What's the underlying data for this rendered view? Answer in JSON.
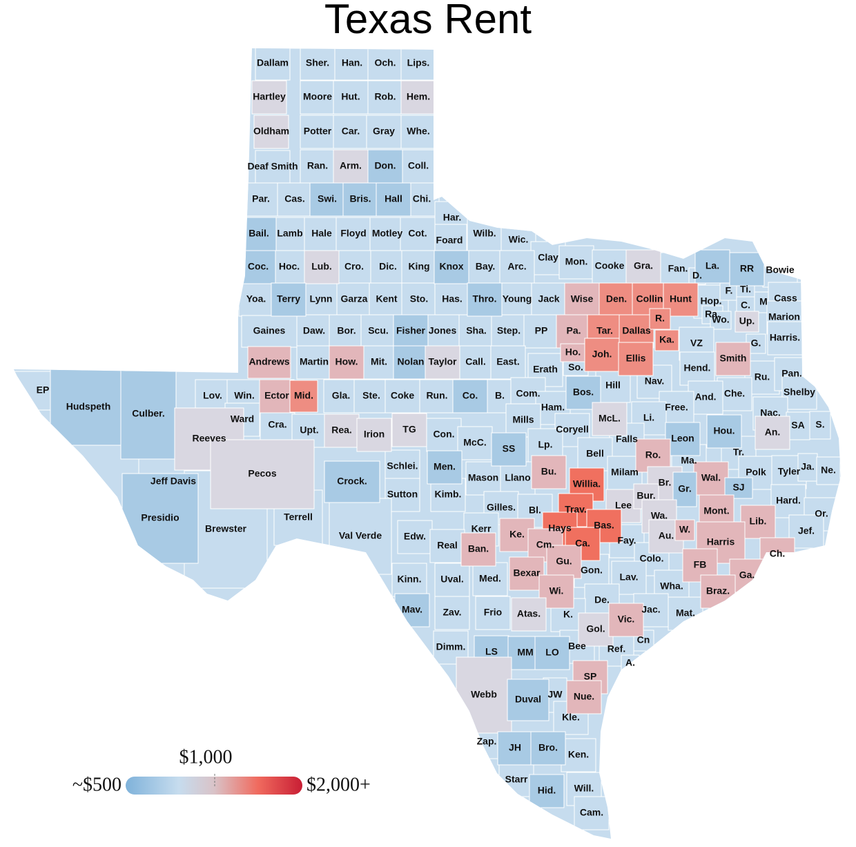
{
  "title": "Texas Rent",
  "legend": {
    "min_label": "~$500",
    "mid_label": "$1,000",
    "max_label": "$2,000+"
  },
  "counties": [
    {
      "label": "Dallam",
      "color": "#c6dcee"
    },
    {
      "label": "Sher.",
      "color": "#c6dcee"
    },
    {
      "label": "Han.",
      "color": "#c6dcee"
    },
    {
      "label": "Och.",
      "color": "#c6dcee"
    },
    {
      "label": "Lips.",
      "color": "#c6dcee"
    },
    {
      "label": "Hartley",
      "color": "#d9d7e1"
    },
    {
      "label": "Moore",
      "color": "#c6dcee"
    },
    {
      "label": "Hut.",
      "color": "#c6dcee"
    },
    {
      "label": "Rob.",
      "color": "#c6dcee"
    },
    {
      "label": "Hem.",
      "color": "#d9d7e1"
    },
    {
      "label": "Oldham",
      "color": "#d9d7e1"
    },
    {
      "label": "Potter",
      "color": "#c6dcee"
    },
    {
      "label": "Car.",
      "color": "#c6dcee"
    },
    {
      "label": "Gray",
      "color": "#c6dcee"
    },
    {
      "label": "Whe.",
      "color": "#c6dcee"
    },
    {
      "label": "Deaf Smith",
      "color": "#c6dcee"
    },
    {
      "label": "Ran.",
      "color": "#c6dcee"
    },
    {
      "label": "Arm.",
      "color": "#d9d7e1"
    },
    {
      "label": "Don.",
      "color": "#a8cae4"
    },
    {
      "label": "Coll.",
      "color": "#c6dcee"
    },
    {
      "label": "Par.",
      "color": "#c6dcee"
    },
    {
      "label": "Cas.",
      "color": "#c6dcee"
    },
    {
      "label": "Swi.",
      "color": "#a8cae4"
    },
    {
      "label": "Bris.",
      "color": "#a8cae4"
    },
    {
      "label": "Hall",
      "color": "#a8cae4"
    },
    {
      "label": "Chi.",
      "color": "#c6dcee"
    },
    {
      "label": "Har.",
      "color": "#c6dcee"
    },
    {
      "label": "Foard",
      "color": "#c6dcee"
    },
    {
      "label": "Wilb.",
      "color": "#c6dcee"
    },
    {
      "label": "Wic.",
      "color": "#c6dcee"
    },
    {
      "label": "Clay",
      "color": "#c6dcee"
    },
    {
      "label": "Mon.",
      "color": "#c6dcee"
    },
    {
      "label": "Cooke",
      "color": "#c6dcee"
    },
    {
      "label": "Gra.",
      "color": "#d9d7e1"
    },
    {
      "label": "Fan.",
      "color": "#c6dcee"
    },
    {
      "label": "La.",
      "color": "#a8cae4"
    },
    {
      "label": "RR",
      "color": "#a8cae4"
    },
    {
      "label": "Bowie",
      "color": "#c6dcee"
    },
    {
      "label": "D.",
      "color": "#c6dcee"
    },
    {
      "label": "Bail.",
      "color": "#a8cae4"
    },
    {
      "label": "Lamb",
      "color": "#c6dcee"
    },
    {
      "label": "Hale",
      "color": "#c6dcee"
    },
    {
      "label": "Floyd",
      "color": "#c6dcee"
    },
    {
      "label": "Motley",
      "color": "#c6dcee"
    },
    {
      "label": "Cot.",
      "color": "#c6dcee"
    },
    {
      "label": "Coc.",
      "color": "#a8cae4"
    },
    {
      "label": "Hoc.",
      "color": "#c6dcee"
    },
    {
      "label": "Lub.",
      "color": "#d9d7e1"
    },
    {
      "label": "Cro.",
      "color": "#c6dcee"
    },
    {
      "label": "Dic.",
      "color": "#c6dcee"
    },
    {
      "label": "King",
      "color": "#c6dcee"
    },
    {
      "label": "Knox",
      "color": "#a8cae4"
    },
    {
      "label": "Bay.",
      "color": "#c6dcee"
    },
    {
      "label": "Arc.",
      "color": "#c6dcee"
    },
    {
      "label": "Yoa.",
      "color": "#c6dcee"
    },
    {
      "label": "Terry",
      "color": "#a8cae4"
    },
    {
      "label": "Lynn",
      "color": "#c6dcee"
    },
    {
      "label": "Garza",
      "color": "#c6dcee"
    },
    {
      "label": "Kent",
      "color": "#c6dcee"
    },
    {
      "label": "Sto.",
      "color": "#c6dcee"
    },
    {
      "label": "Has.",
      "color": "#c6dcee"
    },
    {
      "label": "Thro.",
      "color": "#a8cae4"
    },
    {
      "label": "Young",
      "color": "#c6dcee"
    },
    {
      "label": "Jack",
      "color": "#c6dcee"
    },
    {
      "label": "Wise",
      "color": "#e2b6ba"
    },
    {
      "label": "Den.",
      "color": "#ee8d82"
    },
    {
      "label": "Collin",
      "color": "#ee8d82"
    },
    {
      "label": "Hunt",
      "color": "#ee8d82"
    },
    {
      "label": "Hop.",
      "color": "#c6dcee"
    },
    {
      "label": "F.",
      "color": "#c6dcee"
    },
    {
      "label": "Ti.",
      "color": "#c6dcee"
    },
    {
      "label": "C.",
      "color": "#c6dcee"
    },
    {
      "label": "M",
      "color": "#c6dcee"
    },
    {
      "label": "Cass",
      "color": "#c6dcee"
    },
    {
      "label": "Gaines",
      "color": "#c6dcee"
    },
    {
      "label": "Daw.",
      "color": "#c6dcee"
    },
    {
      "label": "Bor.",
      "color": "#c6dcee"
    },
    {
      "label": "Scu.",
      "color": "#c6dcee"
    },
    {
      "label": "Fisher",
      "color": "#a8cae4"
    },
    {
      "label": "Jones",
      "color": "#c6dcee"
    },
    {
      "label": "Sha.",
      "color": "#c6dcee"
    },
    {
      "label": "Step.",
      "color": "#c6dcee"
    },
    {
      "label": "PP",
      "color": "#c6dcee"
    },
    {
      "label": "Pa.",
      "color": "#e2b6ba"
    },
    {
      "label": "Tar.",
      "color": "#ee8d82"
    },
    {
      "label": "Dallas",
      "color": "#ee8d82"
    },
    {
      "label": "R.",
      "color": "#ee8d82"
    },
    {
      "label": "Ra.",
      "color": "#c6dcee"
    },
    {
      "label": "Wo.",
      "color": "#c6dcee"
    },
    {
      "label": "Up.",
      "color": "#d9d7e1"
    },
    {
      "label": "Marion",
      "color": "#c6dcee"
    },
    {
      "label": "Ka.",
      "color": "#ee8d82"
    },
    {
      "label": "G.",
      "color": "#c6dcee"
    },
    {
      "label": "Harris.",
      "color": "#c6dcee"
    },
    {
      "label": "Andrews",
      "color": "#e2b6ba"
    },
    {
      "label": "Martin",
      "color": "#c6dcee"
    },
    {
      "label": "How.",
      "color": "#e2b6ba"
    },
    {
      "label": "Mit.",
      "color": "#c6dcee"
    },
    {
      "label": "Nolan",
      "color": "#a8cae4"
    },
    {
      "label": "Taylor",
      "color": "#d9d7e1"
    },
    {
      "label": "Call.",
      "color": "#c6dcee"
    },
    {
      "label": "East.",
      "color": "#c6dcee"
    },
    {
      "label": "Erath",
      "color": "#c6dcee"
    },
    {
      "label": "Ho.",
      "color": "#e2b6ba"
    },
    {
      "label": "So.",
      "color": "#c6dcee"
    },
    {
      "label": "Joh.",
      "color": "#ee8d82"
    },
    {
      "label": "Ellis",
      "color": "#ee8d82"
    },
    {
      "label": "VZ",
      "color": "#c6dcee"
    },
    {
      "label": "Smith",
      "color": "#e2b6ba"
    },
    {
      "label": "Hend.",
      "color": "#c6dcee"
    },
    {
      "label": "Ru.",
      "color": "#c6dcee"
    },
    {
      "label": "Pan.",
      "color": "#c6dcee"
    },
    {
      "label": "EP",
      "color": "#c6dcee"
    },
    {
      "label": "Hudspeth",
      "color": "#a8cae4"
    },
    {
      "label": "Culber.",
      "color": "#a8cae4"
    },
    {
      "label": "Lov.",
      "color": "#c6dcee"
    },
    {
      "label": "Win.",
      "color": "#c6dcee"
    },
    {
      "label": "Ector",
      "color": "#e2b6ba"
    },
    {
      "label": "Mid.",
      "color": "#ee8d82"
    },
    {
      "label": "Gla.",
      "color": "#c6dcee"
    },
    {
      "label": "Ste.",
      "color": "#c6dcee"
    },
    {
      "label": "Coke",
      "color": "#c6dcee"
    },
    {
      "label": "Run.",
      "color": "#c6dcee"
    },
    {
      "label": "Co.",
      "color": "#a8cae4"
    },
    {
      "label": "B.",
      "color": "#c6dcee"
    },
    {
      "label": "Com.",
      "color": "#c6dcee"
    },
    {
      "label": "Bos.",
      "color": "#a8cae4"
    },
    {
      "label": "Hill",
      "color": "#c6dcee"
    },
    {
      "label": "Nav.",
      "color": "#c6dcee"
    },
    {
      "label": "Che.",
      "color": "#c6dcee"
    },
    {
      "label": "Shelby",
      "color": "#c6dcee"
    },
    {
      "label": "And.",
      "color": "#c6dcee"
    },
    {
      "label": "Free.",
      "color": "#c6dcee"
    },
    {
      "label": "Ham.",
      "color": "#c6dcee"
    },
    {
      "label": "Ward",
      "color": "#c6dcee"
    },
    {
      "label": "Cra.",
      "color": "#c6dcee"
    },
    {
      "label": "Reeves",
      "color": "#d9d7e1"
    },
    {
      "label": "Upt.",
      "color": "#c6dcee"
    },
    {
      "label": "Rea.",
      "color": "#d9d7e1"
    },
    {
      "label": "Irion",
      "color": "#d9d7e1"
    },
    {
      "label": "TG",
      "color": "#d9d7e1"
    },
    {
      "label": "Con.",
      "color": "#c6dcee"
    },
    {
      "label": "Mills",
      "color": "#c6dcee"
    },
    {
      "label": "Coryell",
      "color": "#c6dcee"
    },
    {
      "label": "McL.",
      "color": "#d9d7e1"
    },
    {
      "label": "Li.",
      "color": "#c6dcee"
    },
    {
      "label": "Nac.",
      "color": "#c6dcee"
    },
    {
      "label": "An.",
      "color": "#d9d7e1"
    },
    {
      "label": "SA",
      "color": "#c6dcee"
    },
    {
      "label": "S.",
      "color": "#c6dcee"
    },
    {
      "label": "Leon",
      "color": "#a8cae4"
    },
    {
      "label": "Hou.",
      "color": "#a8cae4"
    },
    {
      "label": "Falls",
      "color": "#c6dcee"
    },
    {
      "label": "Pecos",
      "color": "#d9d7e1"
    },
    {
      "label": "Jeff Davis",
      "color": "#c6dcee"
    },
    {
      "label": "McC.",
      "color": "#c6dcee"
    },
    {
      "label": "SS",
      "color": "#a8cae4"
    },
    {
      "label": "Lp.",
      "color": "#c6dcee"
    },
    {
      "label": "Bell",
      "color": "#c6dcee"
    },
    {
      "label": "Ro.",
      "color": "#e2b6ba"
    },
    {
      "label": "Ma.",
      "color": "#c6dcee"
    },
    {
      "label": "Tr.",
      "color": "#c6dcee"
    },
    {
      "label": "Schlei.",
      "color": "#c6dcee"
    },
    {
      "label": "Men.",
      "color": "#a8cae4"
    },
    {
      "label": "Mason",
      "color": "#c6dcee"
    },
    {
      "label": "Llano",
      "color": "#c6dcee"
    },
    {
      "label": "Bu.",
      "color": "#e2b6ba"
    },
    {
      "label": "Willia.",
      "color": "#f0705f"
    },
    {
      "label": "Milam",
      "color": "#c6dcee"
    },
    {
      "label": "Br.",
      "color": "#d9d7e1"
    },
    {
      "label": "Wal.",
      "color": "#e2b6ba"
    },
    {
      "label": "Polk",
      "color": "#c6dcee"
    },
    {
      "label": "Tyler",
      "color": "#c6dcee"
    },
    {
      "label": "Ja.",
      "color": "#c6dcee"
    },
    {
      "label": "Ne.",
      "color": "#c6dcee"
    },
    {
      "label": "Crock.",
      "color": "#a8cae4"
    },
    {
      "label": "Gr.",
      "color": "#a8cae4"
    },
    {
      "label": "SJ",
      "color": "#a8cae4"
    },
    {
      "label": "Presidio",
      "color": "#a8cae4"
    },
    {
      "label": "Brewster",
      "color": "#c6dcee"
    },
    {
      "label": "Terrell",
      "color": "#c6dcee"
    },
    {
      "label": "Sutton",
      "color": "#c6dcee"
    },
    {
      "label": "Kimb.",
      "color": "#c6dcee"
    },
    {
      "label": "Gilles.",
      "color": "#c6dcee"
    },
    {
      "label": "Bl.",
      "color": "#c6dcee"
    },
    {
      "label": "Trav.",
      "color": "#f0705f"
    },
    {
      "label": "Lee",
      "color": "#d9d7e1"
    },
    {
      "label": "Bur.",
      "color": "#d9d7e1"
    },
    {
      "label": "Hard.",
      "color": "#c6dcee"
    },
    {
      "label": "Mont.",
      "color": "#e2b6ba"
    },
    {
      "label": "Wa.",
      "color": "#d9d7e1"
    },
    {
      "label": "Lib.",
      "color": "#e2b6ba"
    },
    {
      "label": "Or.",
      "color": "#c6dcee"
    },
    {
      "label": "Val Verde",
      "color": "#c6dcee"
    },
    {
      "label": "Edw.",
      "color": "#c6dcee"
    },
    {
      "label": "Kerr",
      "color": "#c6dcee"
    },
    {
      "label": "Ke.",
      "color": "#e2b6ba"
    },
    {
      "label": "Hays",
      "color": "#f0705f"
    },
    {
      "label": "Bas.",
      "color": "#f0705f"
    },
    {
      "label": "Au.",
      "color": "#d9d7e1"
    },
    {
      "label": "W.",
      "color": "#e2b6ba"
    },
    {
      "label": "Harris",
      "color": "#e2b6ba"
    },
    {
      "label": "Jef.",
      "color": "#c6dcee"
    },
    {
      "label": "Real",
      "color": "#c6dcee"
    },
    {
      "label": "Ban.",
      "color": "#e2b6ba"
    },
    {
      "label": "Cm.",
      "color": "#e2b6ba"
    },
    {
      "label": "Ca.",
      "color": "#f0705f"
    },
    {
      "label": "Fay.",
      "color": "#c6dcee"
    },
    {
      "label": "Ch.",
      "color": "#e2b6ba"
    },
    {
      "label": "Gu.",
      "color": "#e2b6ba"
    },
    {
      "label": "Colo.",
      "color": "#c6dcee"
    },
    {
      "label": "FB",
      "color": "#e2b6ba"
    },
    {
      "label": "Kinn.",
      "color": "#c6dcee"
    },
    {
      "label": "Uval.",
      "color": "#c6dcee"
    },
    {
      "label": "Med.",
      "color": "#c6dcee"
    },
    {
      "label": "Bexar",
      "color": "#e2b6ba"
    },
    {
      "label": "Gon.",
      "color": "#c6dcee"
    },
    {
      "label": "Lav.",
      "color": "#c6dcee"
    },
    {
      "label": "Ga.",
      "color": "#e2b6ba"
    },
    {
      "label": "Wha.",
      "color": "#c6dcee"
    },
    {
      "label": "Braz.",
      "color": "#e2b6ba"
    },
    {
      "label": "Mav.",
      "color": "#a8cae4"
    },
    {
      "label": "Zav.",
      "color": "#c6dcee"
    },
    {
      "label": "Frio",
      "color": "#c6dcee"
    },
    {
      "label": "Wi.",
      "color": "#e2b6ba"
    },
    {
      "label": "Atas.",
      "color": "#d9d7e1"
    },
    {
      "label": "De.",
      "color": "#c6dcee"
    },
    {
      "label": "Jac.",
      "color": "#c6dcee"
    },
    {
      "label": "Mat.",
      "color": "#c6dcee"
    },
    {
      "label": "K.",
      "color": "#c6dcee"
    },
    {
      "label": "Gol.",
      "color": "#d9d7e1"
    },
    {
      "label": "Vic.",
      "color": "#e2b6ba"
    },
    {
      "label": "Cn",
      "color": "#c6dcee"
    },
    {
      "label": "Dimm.",
      "color": "#c6dcee"
    },
    {
      "label": "LS",
      "color": "#a8cae4"
    },
    {
      "label": "MM",
      "color": "#a8cae4"
    },
    {
      "label": "LO",
      "color": "#a8cae4"
    },
    {
      "label": "Bee",
      "color": "#c6dcee"
    },
    {
      "label": "Ref.",
      "color": "#c6dcee"
    },
    {
      "label": "A.",
      "color": "#c6dcee"
    },
    {
      "label": "Webb",
      "color": "#d9d7e1"
    },
    {
      "label": "Duval",
      "color": "#a8cae4"
    },
    {
      "label": "JW",
      "color": "#c6dcee"
    },
    {
      "label": "SP",
      "color": "#e2b6ba"
    },
    {
      "label": "Nue.",
      "color": "#e2b6ba"
    },
    {
      "label": "Kle.",
      "color": "#c6dcee"
    },
    {
      "label": "Zap.",
      "color": "#c6dcee"
    },
    {
      "label": "JH",
      "color": "#a8cae4"
    },
    {
      "label": "Bro.",
      "color": "#a8cae4"
    },
    {
      "label": "Ken.",
      "color": "#c6dcee"
    },
    {
      "label": "Starr",
      "color": "#c6dcee"
    },
    {
      "label": "Hid.",
      "color": "#a8cae4"
    },
    {
      "label": "Will.",
      "color": "#c6dcee"
    },
    {
      "label": "Cam.",
      "color": "#c6dcee"
    }
  ]
}
